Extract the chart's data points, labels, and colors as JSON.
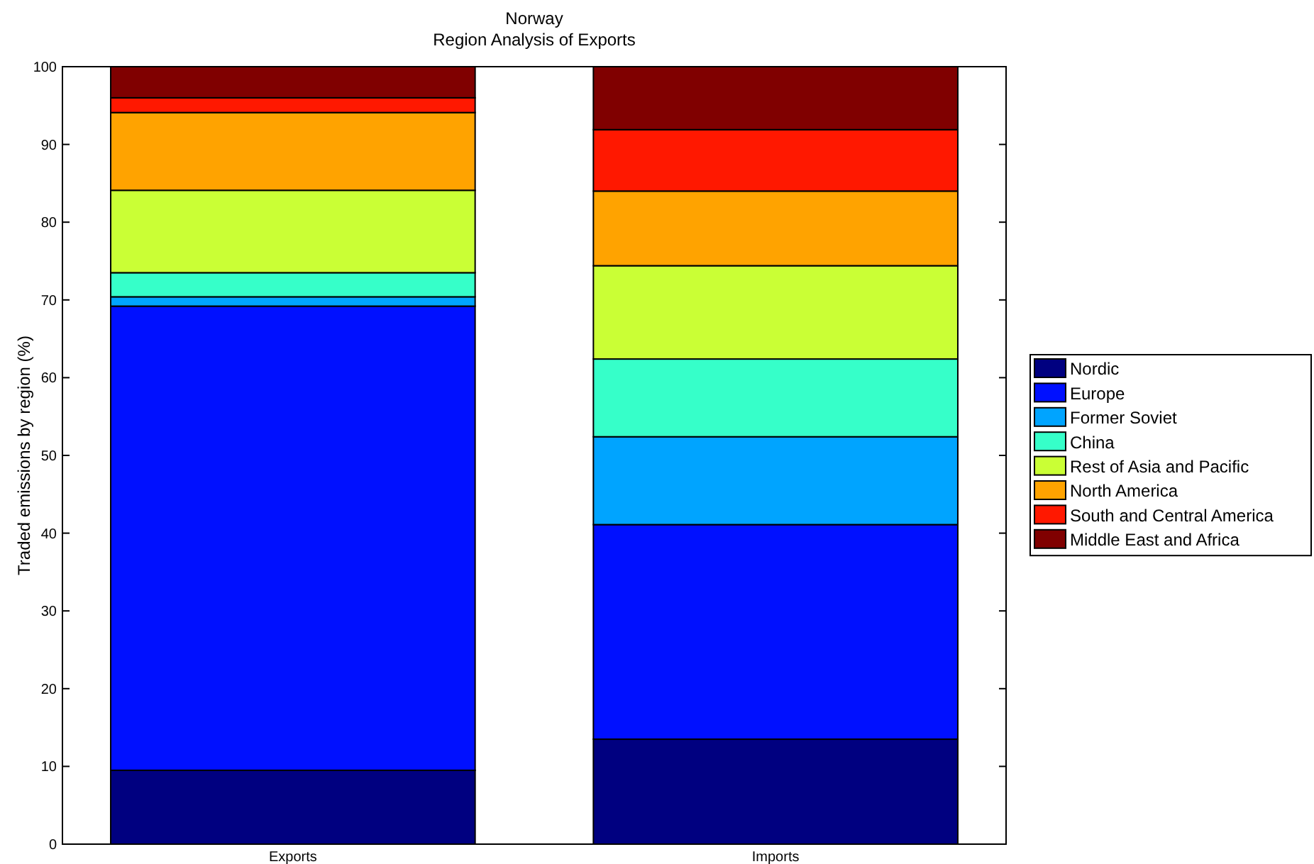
{
  "chart_data": {
    "type": "bar",
    "title": "Norway",
    "subtitle": "Region Analysis of Exports",
    "ylabel": "Traded emissions by region (%)",
    "categories": [
      "Exports",
      "Imports"
    ],
    "stacked": true,
    "legend": "right",
    "ylim": [
      0,
      100
    ],
    "yticks": [
      0,
      10,
      20,
      30,
      40,
      50,
      60,
      70,
      80,
      90,
      100
    ],
    "grid": false,
    "series": [
      {
        "name": "Nordic",
        "color": "#000080",
        "values": [
          9.5,
          13.5
        ]
      },
      {
        "name": "Europe",
        "color": "#0010ff",
        "values": [
          59.7,
          27.6
        ]
      },
      {
        "name": "Former Soviet",
        "color": "#00a4ff",
        "values": [
          1.2,
          11.3
        ]
      },
      {
        "name": "China",
        "color": "#36ffc9",
        "values": [
          3.1,
          10.0
        ]
      },
      {
        "name": "Rest of Asia and Pacific",
        "color": "#caff35",
        "values": [
          10.6,
          12.0
        ]
      },
      {
        "name": "North America",
        "color": "#ffa300",
        "values": [
          10.0,
          9.6
        ]
      },
      {
        "name": "South and Central America",
        "color": "#ff1800",
        "values": [
          1.9,
          7.9
        ]
      },
      {
        "name": "Middle East and Africa",
        "color": "#800000",
        "values": [
          4.0,
          8.1
        ]
      }
    ]
  }
}
